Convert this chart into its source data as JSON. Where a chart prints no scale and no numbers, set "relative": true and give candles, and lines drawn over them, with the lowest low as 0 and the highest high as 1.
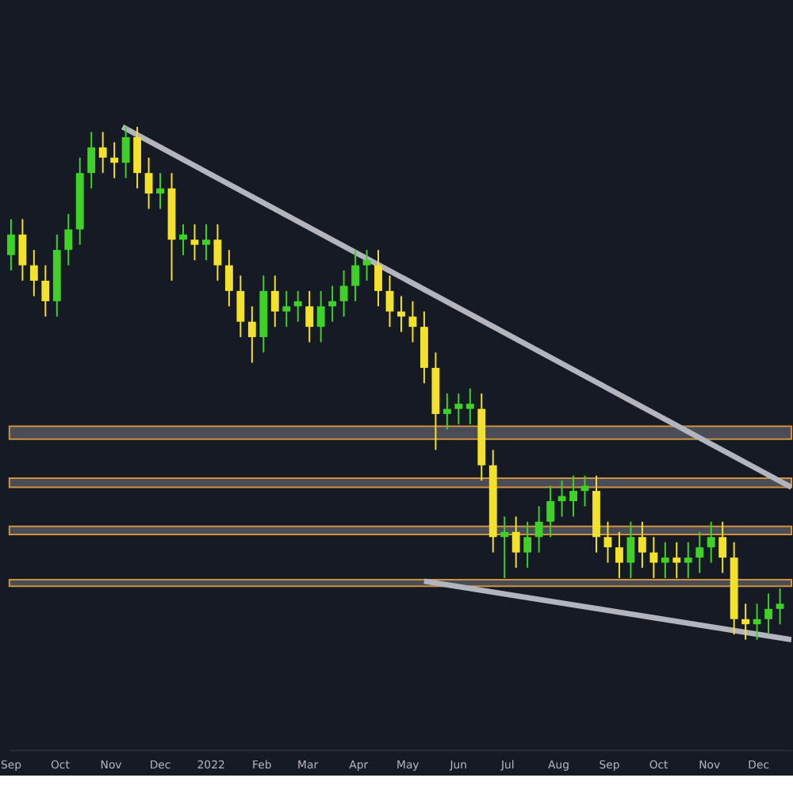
{
  "chart_data": {
    "type": "candlestick",
    "relative": true,
    "x": [
      "2021-09-01",
      "2021-09-08",
      "2021-09-15",
      "2021-09-22",
      "2021-09-29",
      "2021-10-06",
      "2021-10-13",
      "2021-10-20",
      "2021-10-27",
      "2021-11-03",
      "2021-11-10",
      "2021-11-17",
      "2021-11-24",
      "2021-12-01",
      "2021-12-08",
      "2021-12-15",
      "2021-12-22",
      "2021-12-29",
      "2022-01-05",
      "2022-01-12",
      "2022-01-19",
      "2022-01-26",
      "2022-02-02",
      "2022-02-09",
      "2022-02-16",
      "2022-02-23",
      "2022-03-02",
      "2022-03-09",
      "2022-03-16",
      "2022-03-23",
      "2022-03-30",
      "2022-04-06",
      "2022-04-13",
      "2022-04-20",
      "2022-04-27",
      "2022-05-04",
      "2022-05-11",
      "2022-05-18",
      "2022-05-25",
      "2022-06-01",
      "2022-06-08",
      "2022-06-15",
      "2022-06-22",
      "2022-06-29",
      "2022-07-06",
      "2022-07-13",
      "2022-07-20",
      "2022-07-27",
      "2022-08-03",
      "2022-08-10",
      "2022-08-17",
      "2022-08-24",
      "2022-08-31",
      "2022-09-07",
      "2022-09-14",
      "2022-09-21",
      "2022-09-28",
      "2022-10-05",
      "2022-10-12",
      "2022-10-19",
      "2022-10-26",
      "2022-11-02",
      "2022-11-09",
      "2022-11-16",
      "2022-11-23",
      "2022-11-30",
      "2022-12-07",
      "2022-12-14"
    ],
    "ohlc": [
      [
        0.75,
        0.82,
        0.72,
        0.79
      ],
      [
        0.79,
        0.82,
        0.7,
        0.73
      ],
      [
        0.73,
        0.76,
        0.67,
        0.7
      ],
      [
        0.7,
        0.73,
        0.63,
        0.66
      ],
      [
        0.66,
        0.79,
        0.63,
        0.76
      ],
      [
        0.76,
        0.83,
        0.73,
        0.8
      ],
      [
        0.8,
        0.94,
        0.77,
        0.91
      ],
      [
        0.91,
        0.99,
        0.88,
        0.96
      ],
      [
        0.96,
        0.99,
        0.91,
        0.94
      ],
      [
        0.94,
        0.97,
        0.9,
        0.93
      ],
      [
        0.93,
        1.0,
        0.9,
        0.98
      ],
      [
        0.98,
        1.0,
        0.88,
        0.91
      ],
      [
        0.91,
        0.94,
        0.84,
        0.87
      ],
      [
        0.87,
        0.91,
        0.84,
        0.88
      ],
      [
        0.88,
        0.91,
        0.7,
        0.78
      ],
      [
        0.78,
        0.81,
        0.75,
        0.79
      ],
      [
        0.78,
        0.81,
        0.74,
        0.77
      ],
      [
        0.77,
        0.81,
        0.74,
        0.78
      ],
      [
        0.78,
        0.81,
        0.7,
        0.73
      ],
      [
        0.73,
        0.76,
        0.65,
        0.68
      ],
      [
        0.68,
        0.71,
        0.59,
        0.62
      ],
      [
        0.62,
        0.65,
        0.54,
        0.59
      ],
      [
        0.59,
        0.71,
        0.56,
        0.68
      ],
      [
        0.68,
        0.71,
        0.61,
        0.64
      ],
      [
        0.64,
        0.68,
        0.61,
        0.65
      ],
      [
        0.65,
        0.68,
        0.62,
        0.66
      ],
      [
        0.65,
        0.68,
        0.58,
        0.61
      ],
      [
        0.61,
        0.68,
        0.58,
        0.65
      ],
      [
        0.65,
        0.69,
        0.62,
        0.66
      ],
      [
        0.66,
        0.72,
        0.63,
        0.69
      ],
      [
        0.69,
        0.76,
        0.66,
        0.73
      ],
      [
        0.73,
        0.76,
        0.7,
        0.74
      ],
      [
        0.73,
        0.76,
        0.65,
        0.68
      ],
      [
        0.68,
        0.71,
        0.61,
        0.64
      ],
      [
        0.64,
        0.67,
        0.6,
        0.63
      ],
      [
        0.63,
        0.66,
        0.58,
        0.61
      ],
      [
        0.61,
        0.64,
        0.5,
        0.53
      ],
      [
        0.53,
        0.56,
        0.37,
        0.44
      ],
      [
        0.44,
        0.48,
        0.41,
        0.45
      ],
      [
        0.45,
        0.48,
        0.42,
        0.46
      ],
      [
        0.45,
        0.49,
        0.42,
        0.46
      ],
      [
        0.45,
        0.48,
        0.31,
        0.34
      ],
      [
        0.34,
        0.37,
        0.17,
        0.2
      ],
      [
        0.2,
        0.24,
        0.12,
        0.21
      ],
      [
        0.21,
        0.24,
        0.14,
        0.17
      ],
      [
        0.17,
        0.23,
        0.14,
        0.2
      ],
      [
        0.2,
        0.26,
        0.17,
        0.23
      ],
      [
        0.23,
        0.3,
        0.2,
        0.27
      ],
      [
        0.27,
        0.31,
        0.24,
        0.28
      ],
      [
        0.27,
        0.32,
        0.24,
        0.29
      ],
      [
        0.29,
        0.32,
        0.26,
        0.3
      ],
      [
        0.29,
        0.32,
        0.17,
        0.2
      ],
      [
        0.2,
        0.23,
        0.15,
        0.18
      ],
      [
        0.18,
        0.21,
        0.12,
        0.15
      ],
      [
        0.15,
        0.23,
        0.12,
        0.2
      ],
      [
        0.2,
        0.23,
        0.14,
        0.17
      ],
      [
        0.17,
        0.2,
        0.12,
        0.15
      ],
      [
        0.15,
        0.19,
        0.12,
        0.16
      ],
      [
        0.16,
        0.19,
        0.12,
        0.15
      ],
      [
        0.15,
        0.19,
        0.12,
        0.16
      ],
      [
        0.16,
        0.21,
        0.13,
        0.18
      ],
      [
        0.18,
        0.23,
        0.15,
        0.2
      ],
      [
        0.2,
        0.23,
        0.13,
        0.16
      ],
      [
        0.16,
        0.19,
        0.01,
        0.04
      ],
      [
        0.04,
        0.07,
        0.0,
        0.03
      ],
      [
        0.03,
        0.07,
        0.0,
        0.04
      ],
      [
        0.04,
        0.09,
        0.01,
        0.06
      ],
      [
        0.06,
        0.1,
        0.03,
        0.07
      ]
    ],
    "colors": [
      "#3fd128",
      "#f2e22c",
      "#f2e22c",
      "#f2e22c",
      "#3fd128",
      "#3fd128",
      "#3fd128",
      "#3fd128",
      "#f2e22c",
      "#f2e22c",
      "#3fd128",
      "#f2e22c",
      "#f2e22c",
      "#3fd128",
      "#f2e22c",
      "#3fd128",
      "#f2e22c",
      "#3fd128",
      "#f2e22c",
      "#f2e22c",
      "#f2e22c",
      "#f2e22c",
      "#3fd128",
      "#f2e22c",
      "#3fd128",
      "#3fd128",
      "#f2e22c",
      "#3fd128",
      "#3fd128",
      "#3fd128",
      "#3fd128",
      "#3fd128",
      "#f2e22c",
      "#f2e22c",
      "#f2e22c",
      "#f2e22c",
      "#f2e22c",
      "#f2e22c",
      "#3fd128",
      "#3fd128",
      "#3fd128",
      "#f2e22c",
      "#f2e22c",
      "#3fd128",
      "#f2e22c",
      "#3fd128",
      "#3fd128",
      "#3fd128",
      "#3fd128",
      "#3fd128",
      "#3fd128",
      "#f2e22c",
      "#f2e22c",
      "#f2e22c",
      "#3fd128",
      "#f2e22c",
      "#f2e22c",
      "#3fd128",
      "#f2e22c",
      "#3fd128",
      "#3fd128",
      "#3fd128",
      "#f2e22c",
      "#f2e22c",
      "#f2e22c",
      "#3fd128",
      "#3fd128",
      "#3fd128"
    ],
    "series": [
      {
        "type": "line",
        "color": "#b2b5be",
        "x": [
          "2021-11-08",
          "2022-12-21"
        ],
        "values": [
          1.0,
          0.297
        ]
      },
      {
        "type": "line",
        "color": "#b2b5be",
        "x": [
          "2022-05-11",
          "2022-12-21"
        ],
        "values": [
          0.114,
          0.0
        ]
      }
    ],
    "bands": [
      {
        "axis": "y",
        "from": 0.391,
        "to": 0.416,
        "color": "#50535e"
      },
      {
        "axis": "y",
        "from": 0.297,
        "to": 0.315,
        "color": "#50535e"
      },
      {
        "axis": "y",
        "from": 0.205,
        "to": 0.221,
        "color": "#50535e"
      },
      {
        "axis": "y",
        "from": 0.104,
        "to": 0.117,
        "color": "#50535e"
      }
    ],
    "xlim": [
      "2021-08-31",
      "2022-12-21"
    ],
    "xticks": [
      {
        "value": "2021-09-01",
        "label": "Sep"
      },
      {
        "value": "2021-10-01",
        "label": "Oct"
      },
      {
        "value": "2021-11-01",
        "label": "Nov"
      },
      {
        "value": "2021-12-01",
        "label": "Dec"
      },
      {
        "value": "2022-01-01",
        "label": "2022"
      },
      {
        "value": "2022-02-01",
        "label": "Feb"
      },
      {
        "value": "2022-03-01",
        "label": "Mar"
      },
      {
        "value": "2022-04-01",
        "label": "Apr"
      },
      {
        "value": "2022-05-01",
        "label": "May"
      },
      {
        "value": "2022-06-01",
        "label": "Jun"
      },
      {
        "value": "2022-07-01",
        "label": "Jul"
      },
      {
        "value": "2022-08-01",
        "label": "Aug"
      },
      {
        "value": "2022-09-01",
        "label": "Sep"
      },
      {
        "value": "2022-10-01",
        "label": "Oct"
      },
      {
        "value": "2022-11-01",
        "label": "Nov"
      },
      {
        "value": "2022-12-01",
        "label": "Dec"
      }
    ]
  }
}
